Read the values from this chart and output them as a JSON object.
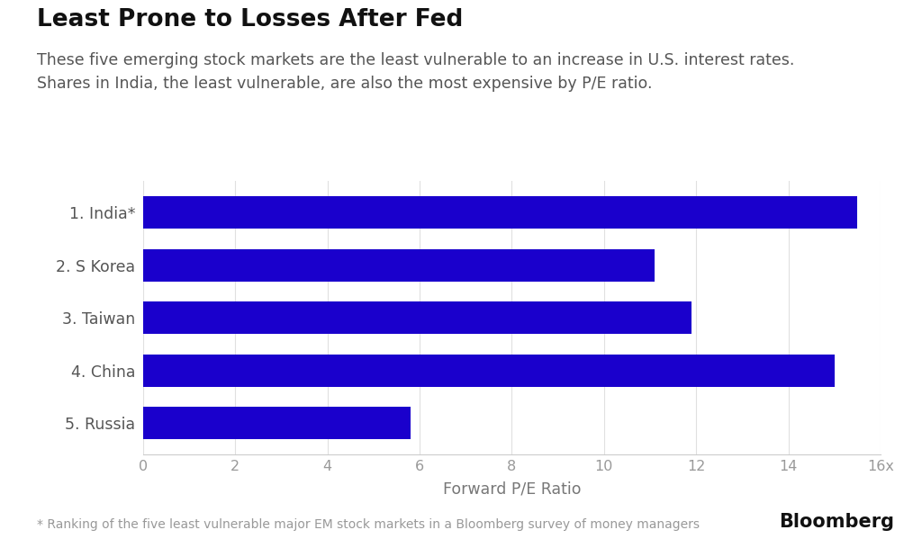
{
  "title": "Least Prone to Losses After Fed",
  "subtitle": "These five emerging stock markets are the least vulnerable to an increase in U.S. interest rates.\nShares in India, the least vulnerable, are also the most expensive by P/E ratio.",
  "categories": [
    "1. India*",
    "2. S Korea",
    "3. Taiwan",
    "4. China",
    "5. Russia"
  ],
  "values": [
    15.5,
    11.1,
    11.9,
    15.0,
    5.8
  ],
  "bar_color": "#1a00cc",
  "background_color": "#FFFFFF",
  "xlabel": "Forward P/E Ratio",
  "xlim": [
    0,
    16
  ],
  "xticks": [
    0,
    2,
    4,
    6,
    8,
    10,
    12,
    14
  ],
  "xtick_last_label": "16x",
  "footnote": "* Ranking of the five least vulnerable major EM stock markets in a Bloomberg survey of money managers",
  "bloomberg_text": "Bloomberg",
  "title_fontsize": 19,
  "subtitle_fontsize": 12.5,
  "label_fontsize": 12.5,
  "tick_fontsize": 11.5,
  "footnote_fontsize": 10
}
